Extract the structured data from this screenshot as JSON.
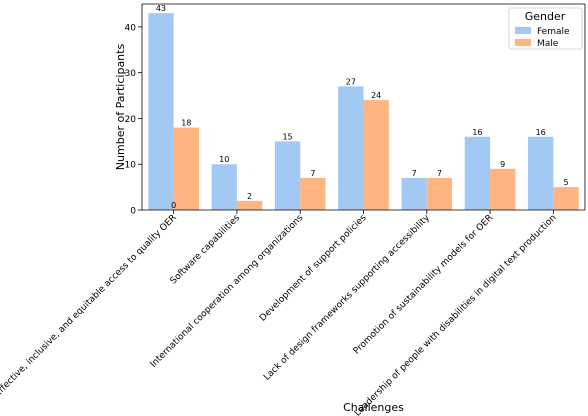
{
  "chart_data": {
    "type": "bar",
    "xlabel": "Challenges",
    "ylabel": "Number of Participants",
    "ylim": [
      0,
      45
    ],
    "yticks": [
      0,
      10,
      20,
      30,
      40
    ],
    "grid": false,
    "legend": {
      "title": "Gender",
      "placement": "top-right"
    },
    "categories": [
      "Effective, inclusive, and equitable access to quality OER",
      "Software capabilities",
      "International cooperation among organizations",
      "Development of support policies",
      "Lack of design frameworks supporting accessibility",
      "Promotion of sustainability models for OER",
      "Leadership of people with disabilities in digital text production"
    ],
    "series": [
      {
        "name": "Female",
        "color": "#a1c9f4",
        "values": [
          43,
          10,
          15,
          27,
          7,
          16,
          16
        ]
      },
      {
        "name": "Male",
        "color": "#ffb482",
        "values": [
          18,
          2,
          7,
          24,
          7,
          9,
          5
        ]
      }
    ],
    "annotations": [
      {
        "text": "0",
        "category": "Effective, inclusive, and equitable access to quality OER",
        "value": 0
      }
    ]
  }
}
